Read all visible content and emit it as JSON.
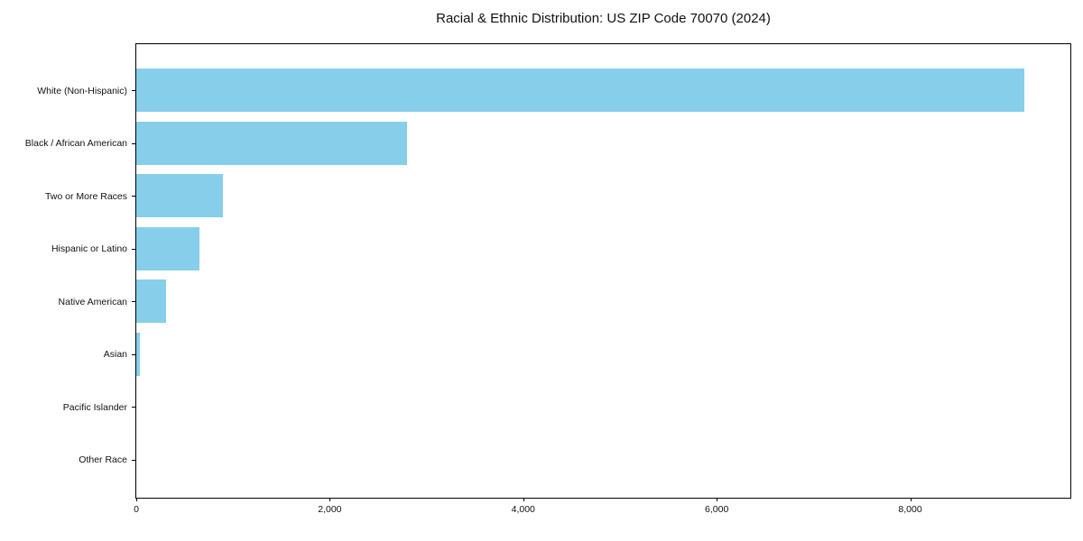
{
  "chart_data": {
    "type": "bar",
    "orientation": "horizontal",
    "title": "Racial & Ethnic Distribution: US ZIP Code 70070 (2024)",
    "categories": [
      "White (Non-Hispanic)",
      "Black / African American",
      "Two or More Races",
      "Hispanic or Latino",
      "Native American",
      "Asian",
      "Pacific Islander",
      "Other Race"
    ],
    "values": [
      9180,
      2800,
      900,
      650,
      310,
      40,
      0,
      0
    ],
    "xlabel": "",
    "ylabel": "",
    "xlim": [
      0,
      9646
    ],
    "xticks": [
      0,
      2000,
      4000,
      6000,
      8000
    ],
    "xtick_labels": [
      "0",
      "2,000",
      "4,000",
      "6,000",
      "8,000"
    ],
    "bar_color": "#87CEEB",
    "axis_color": "#000000",
    "grid": false,
    "legend": null,
    "value_axis": "x",
    "bars_sorted": "descending"
  }
}
